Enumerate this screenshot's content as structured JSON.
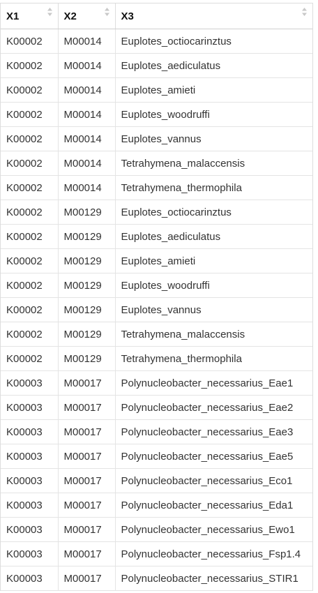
{
  "table": {
    "columns": [
      "X1",
      "X2",
      "X3"
    ],
    "rows": [
      [
        "K00002",
        "M00014",
        "Euplotes_octiocarinztus"
      ],
      [
        "K00002",
        "M00014",
        "Euplotes_aediculatus"
      ],
      [
        "K00002",
        "M00014",
        "Euplotes_amieti"
      ],
      [
        "K00002",
        "M00014",
        "Euplotes_woodruffi"
      ],
      [
        "K00002",
        "M00014",
        "Euplotes_vannus"
      ],
      [
        "K00002",
        "M00014",
        "Tetrahymena_malaccensis"
      ],
      [
        "K00002",
        "M00014",
        "Tetrahymena_thermophila"
      ],
      [
        "K00002",
        "M00129",
        "Euplotes_octiocarinztus"
      ],
      [
        "K00002",
        "M00129",
        "Euplotes_aediculatus"
      ],
      [
        "K00002",
        "M00129",
        "Euplotes_amieti"
      ],
      [
        "K00002",
        "M00129",
        "Euplotes_woodruffi"
      ],
      [
        "K00002",
        "M00129",
        "Euplotes_vannus"
      ],
      [
        "K00002",
        "M00129",
        "Tetrahymena_malaccensis"
      ],
      [
        "K00002",
        "M00129",
        "Tetrahymena_thermophila"
      ],
      [
        "K00003",
        "M00017",
        "Polynucleobacter_necessarius_Eae1"
      ],
      [
        "K00003",
        "M00017",
        "Polynucleobacter_necessarius_Eae2"
      ],
      [
        "K00003",
        "M00017",
        "Polynucleobacter_necessarius_Eae3"
      ],
      [
        "K00003",
        "M00017",
        "Polynucleobacter_necessarius_Eae5"
      ],
      [
        "K00003",
        "M00017",
        "Polynucleobacter_necessarius_Eco1"
      ],
      [
        "K00003",
        "M00017",
        "Polynucleobacter_necessarius_Eda1"
      ],
      [
        "K00003",
        "M00017",
        "Polynucleobacter_necessarius_Ewo1"
      ],
      [
        "K00003",
        "M00017",
        "Polynucleobacter_necessarius_Fsp1.4"
      ],
      [
        "K00003",
        "M00017",
        "Polynucleobacter_necessarius_STIR1"
      ]
    ],
    "sort_icon": "sort-updown-icon"
  }
}
